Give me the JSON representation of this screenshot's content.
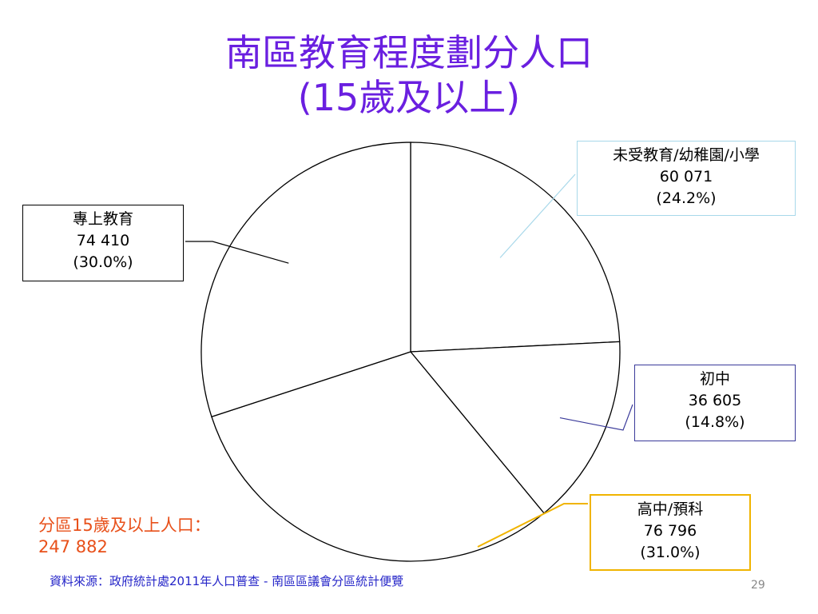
{
  "title": {
    "line1": "南區教育程度劃分人口",
    "line2": "(15歲及以上)"
  },
  "chart_data": {
    "type": "pie",
    "title": "南區教育程度劃分人口 (15歲及以上)",
    "slices": [
      {
        "label": "未受教育/幼稚園/小學",
        "value_text": "60 071",
        "percent_text": "(24.2%)",
        "value": 60071,
        "percent": 24.2,
        "box_color": "#a8d8ea",
        "leader_color": "#a8d8ea"
      },
      {
        "label": "初中",
        "value_text": "36 605",
        "percent_text": "(14.8%)",
        "value": 36605,
        "percent": 14.8,
        "box_color": "#3a3a9a",
        "leader_color": "#3a3a9a"
      },
      {
        "label": "高中/預科",
        "value_text": "76 796",
        "percent_text": "(31.0%)",
        "value": 76796,
        "percent": 31.0,
        "box_color": "#f0b400",
        "leader_color": "#f0b400"
      },
      {
        "label": "專上教育",
        "value_text": "74 410",
        "percent_text": "(30.0%)",
        "value": 74410,
        "percent": 30.0,
        "box_color": "#000000",
        "leader_color": "#000000"
      }
    ],
    "slice_fill": "#ffffff",
    "slice_stroke": "#000000"
  },
  "note": {
    "line1": "分區15歲及以上人口：",
    "line2": "247 882"
  },
  "source": "資料來源：政府統計處2011年人口普查 - 南區區議會分區統計便覽",
  "page_number": "29",
  "colors": {
    "title": "#6a1fe0",
    "note": "#e8501a",
    "source": "#2525c8"
  }
}
